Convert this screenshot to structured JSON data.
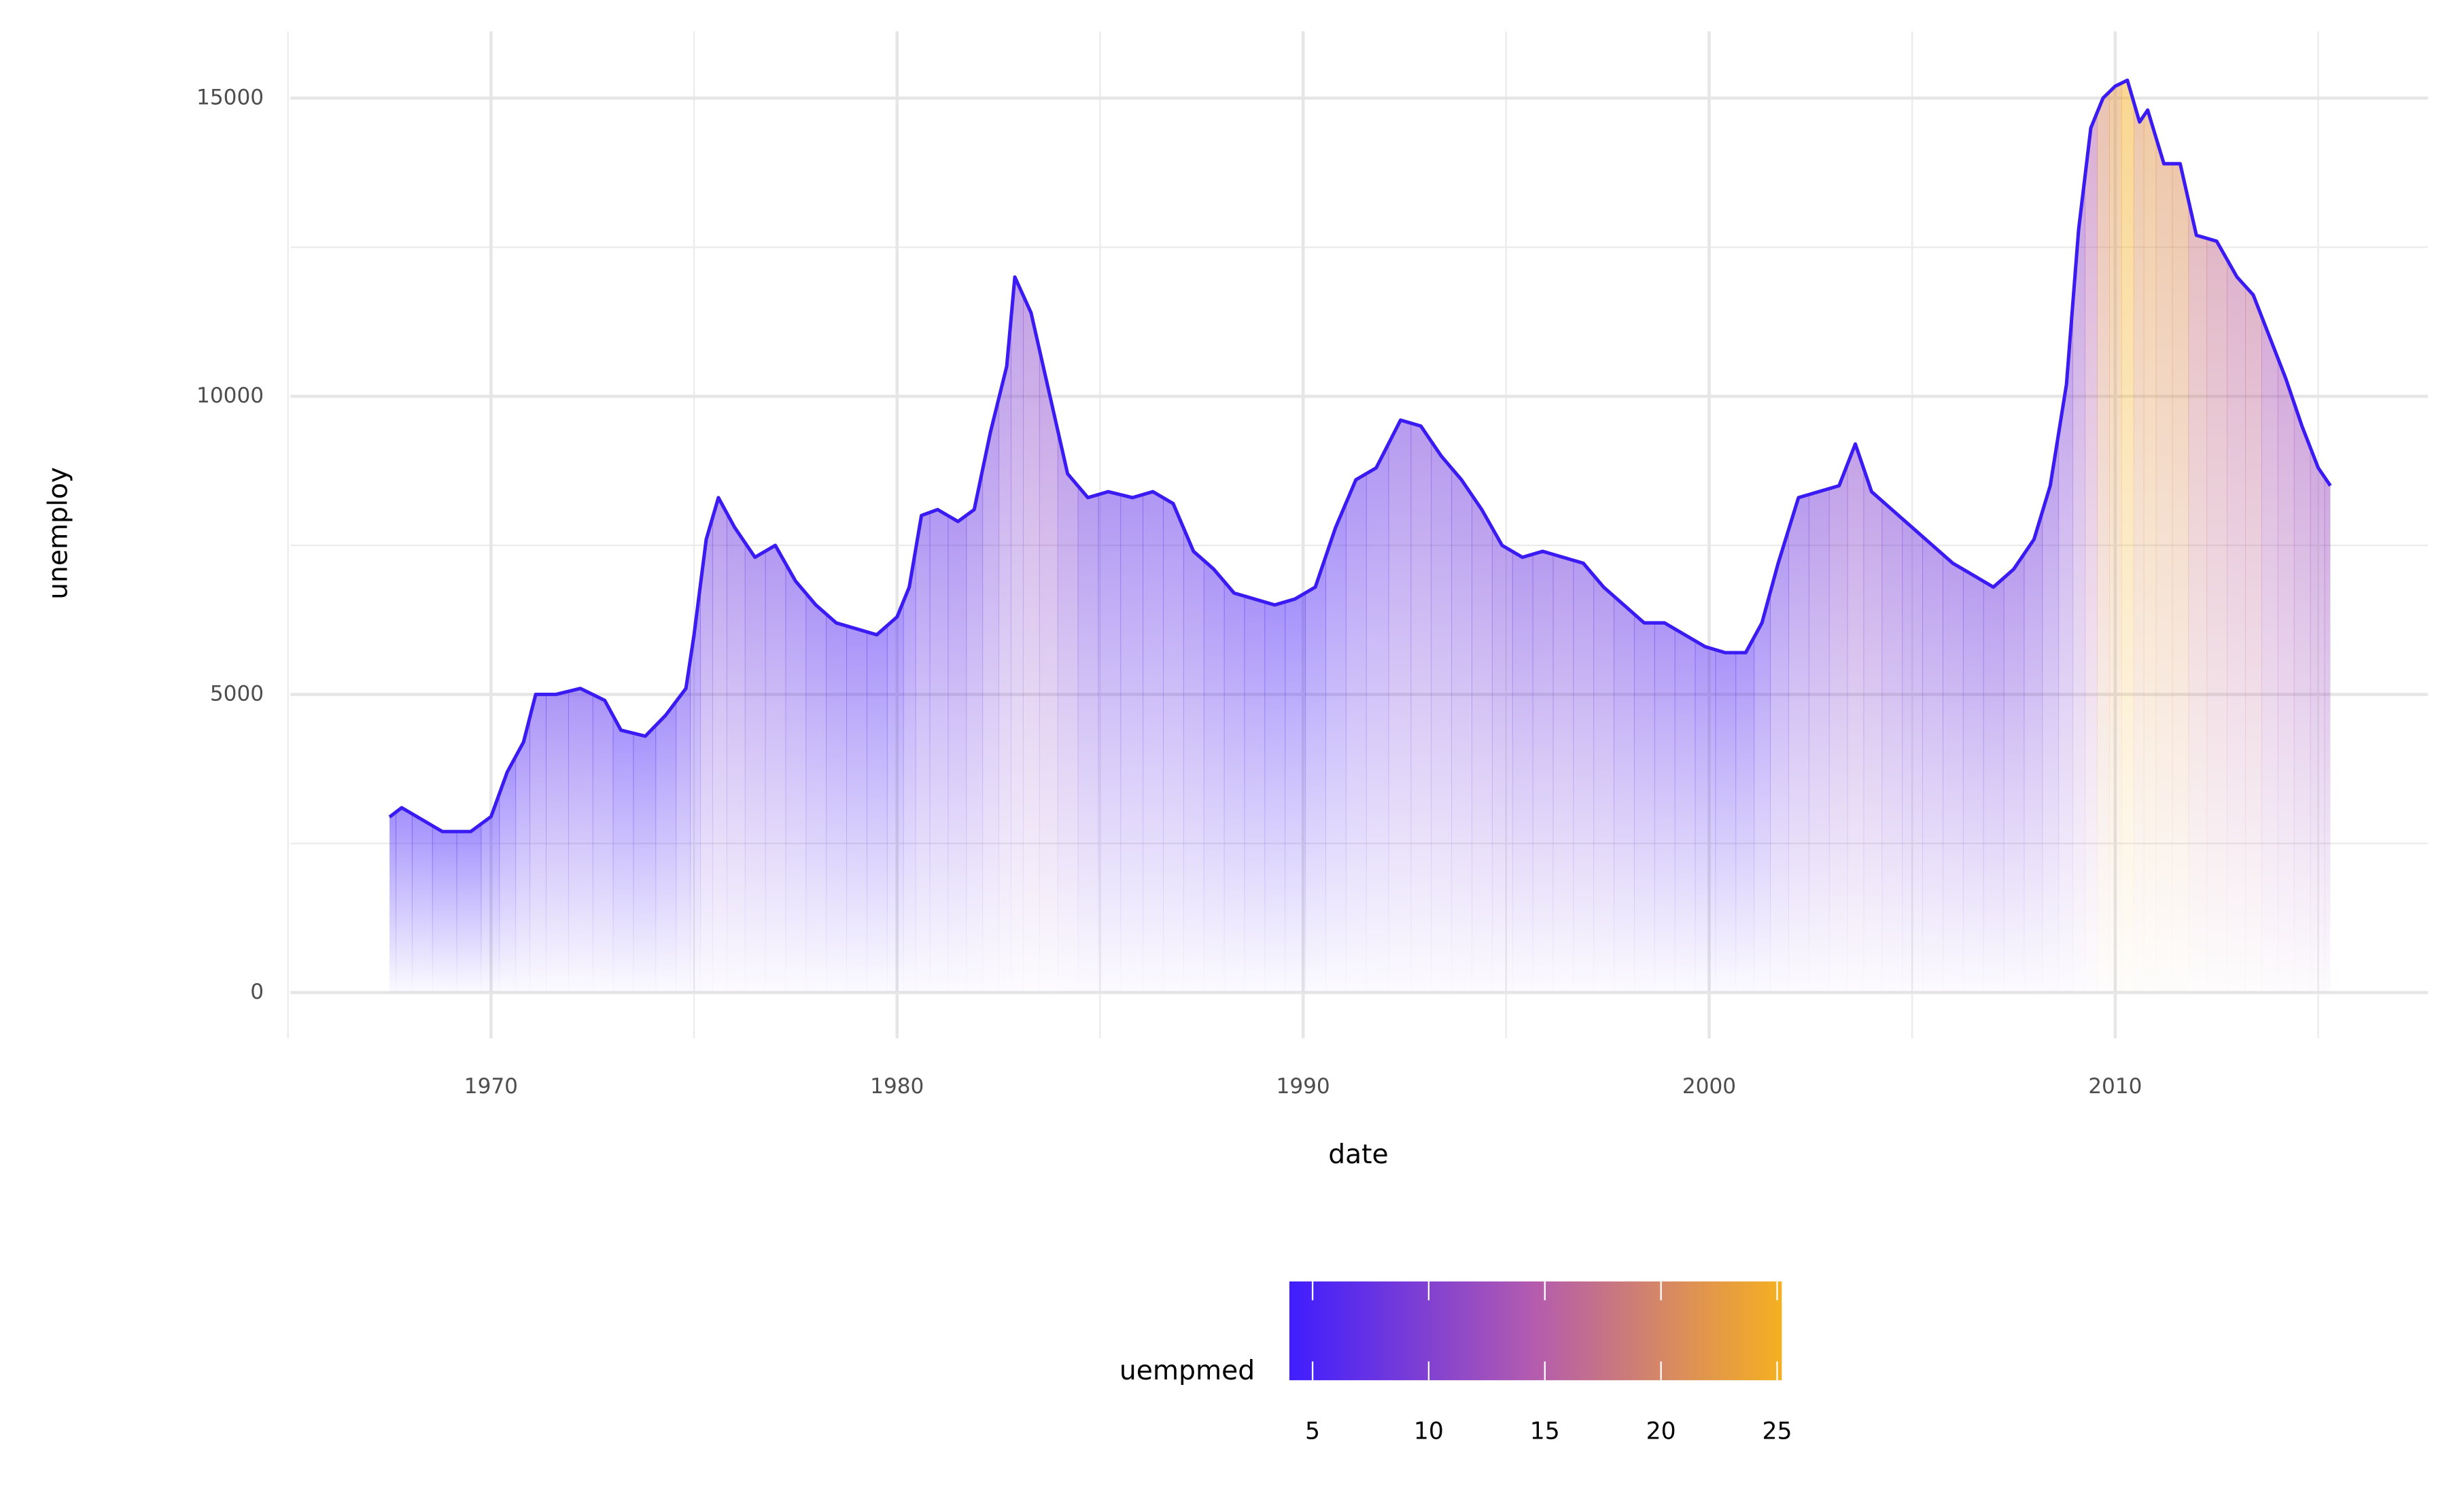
{
  "chart_data": {
    "type": "area",
    "x_label": "date",
    "y_label": "unemploy",
    "x": [
      1967.5,
      1967.8,
      1968.3,
      1968.8,
      1969.5,
      1970.0,
      1970.4,
      1970.8,
      1971.1,
      1971.6,
      1972.2,
      1972.8,
      1973.2,
      1973.8,
      1974.3,
      1974.8,
      1975.0,
      1975.3,
      1975.6,
      1976.0,
      1976.5,
      1977.0,
      1977.5,
      1978.0,
      1978.5,
      1979.0,
      1979.5,
      1980.0,
      1980.3,
      1980.6,
      1981.0,
      1981.5,
      1981.9,
      1982.3,
      1982.7,
      1982.9,
      1983.3,
      1983.7,
      1984.2,
      1984.7,
      1985.2,
      1985.8,
      1986.3,
      1986.8,
      1987.3,
      1987.8,
      1988.3,
      1988.8,
      1989.3,
      1989.8,
      1990.3,
      1990.8,
      1991.3,
      1991.8,
      1992.4,
      1992.9,
      1993.4,
      1993.9,
      1994.4,
      1994.9,
      1995.4,
      1995.9,
      1996.4,
      1996.9,
      1997.4,
      1997.9,
      1998.4,
      1998.9,
      1999.4,
      1999.9,
      2000.4,
      2000.9,
      2001.3,
      2001.7,
      2002.2,
      2002.7,
      2003.2,
      2003.6,
      2004.0,
      2004.5,
      2005.0,
      2005.5,
      2006.0,
      2006.5,
      2007.0,
      2007.5,
      2008.0,
      2008.4,
      2008.8,
      2009.1,
      2009.4,
      2009.7,
      2010.0,
      2010.3,
      2010.6,
      2010.8,
      2011.2,
      2011.6,
      2012.0,
      2012.5,
      2013.0,
      2013.4,
      2013.8,
      2014.2,
      2014.6,
      2015.0,
      2015.3
    ],
    "values": [
      2944,
      3100,
      2900,
      2700,
      2700,
      2950,
      3700,
      4200,
      5000,
      5000,
      5100,
      4900,
      4400,
      4300,
      4650,
      5100,
      6000,
      7600,
      8300,
      7800,
      7300,
      7500,
      6900,
      6500,
      6200,
      6100,
      6000,
      6300,
      6800,
      8000,
      8100,
      7900,
      8100,
      9400,
      10500,
      12000,
      11400,
      10200,
      8700,
      8300,
      8400,
      8300,
      8400,
      8200,
      7400,
      7100,
      6700,
      6600,
      6500,
      6600,
      6800,
      7800,
      8600,
      8800,
      9600,
      9500,
      9000,
      8600,
      8100,
      7500,
      7300,
      7400,
      7300,
      7200,
      6800,
      6500,
      6200,
      6200,
      6000,
      5800,
      5700,
      5700,
      6200,
      7200,
      8300,
      8400,
      8500,
      9200,
      8400,
      8100,
      7800,
      7500,
      7200,
      7000,
      6800,
      7100,
      7600,
      8500,
      10200,
      12800,
      14500,
      15000,
      15200,
      15300,
      14600,
      14800,
      13900,
      13900,
      12700,
      12600,
      12000,
      11700,
      11000,
      10300,
      9500,
      8800,
      8500
    ],
    "color": "#3a1cf2",
    "fill_title": "uempmed",
    "fill_values": [
      4.5,
      4.7,
      4.5,
      4.5,
      4.4,
      4.6,
      5,
      5.5,
      6.2,
      6.3,
      6.2,
      5.8,
      4.9,
      5,
      5.3,
      5.8,
      6.3,
      8,
      8.5,
      8.2,
      7.8,
      7.5,
      6.8,
      6.3,
      5.9,
      5.8,
      5.4,
      5.6,
      6.4,
      7.3,
      7.3,
      7.4,
      7.8,
      8.6,
      9.5,
      10,
      11,
      10.8,
      9.5,
      8,
      7.2,
      7,
      6.9,
      6.9,
      6.7,
      6.2,
      5.9,
      5.8,
      5.3,
      5.1,
      5.4,
      5.8,
      6.8,
      7.2,
      8.2,
      8.6,
      8.3,
      8.3,
      8.6,
      8.4,
      8,
      8.2,
      8.4,
      8,
      7.9,
      7.3,
      6.9,
      6.5,
      6.4,
      6,
      5.8,
      5.9,
      6.3,
      7.5,
      8.6,
      9.2,
      10,
      10.5,
      10.2,
      9.5,
      9,
      8.7,
      8.6,
      8.3,
      8.4,
      8.6,
      8.7,
      9,
      9.6,
      11.5,
      15,
      20,
      22,
      25,
      21,
      22,
      21,
      21,
      18,
      17,
      16,
      16.5,
      14,
      13.5,
      13,
      12.6,
      12.4
    ],
    "fill_colors": [
      "#3f1dff",
      "#b45cae",
      "#f5b020"
    ],
    "fill_lim": [
      4,
      25.2
    ],
    "fill_ticks": [
      5,
      10,
      15,
      20,
      25
    ],
    "xlim": [
      1965.06,
      2017.7
    ],
    "xticks": [
      1970,
      1980,
      1990,
      2000,
      2010
    ],
    "x_minor_ticks": [
      1965,
      1975,
      1985,
      1995,
      2005,
      2015
    ],
    "ylim": [
      -768,
      16120
    ],
    "yticks": [
      0,
      5000,
      10000,
      15000
    ],
    "y_minor_ticks": [
      2500,
      7500,
      12500
    ],
    "grid": true,
    "legend": "bottom"
  }
}
